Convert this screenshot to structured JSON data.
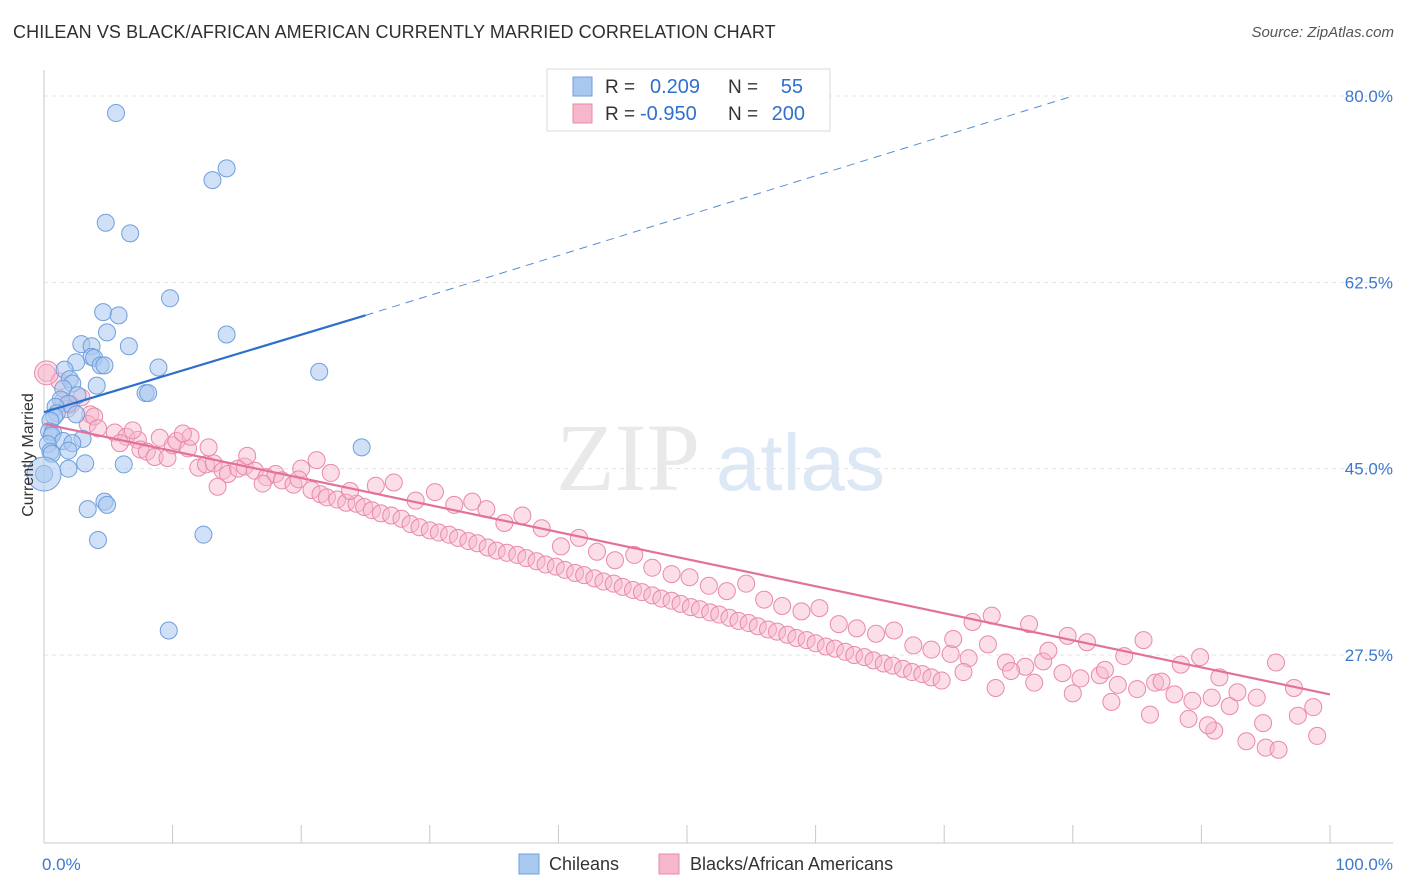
{
  "title": "CHILEAN VS BLACK/AFRICAN AMERICAN CURRENTLY MARRIED CORRELATION CHART",
  "source": "Source: ZipAtlas.com",
  "watermark": {
    "zip": "ZIP",
    "atlas": "atlas"
  },
  "colors": {
    "blue": "#a9c8f0",
    "blue_edge": "#6f9fdc",
    "blue_line": "#2e6fcc",
    "pink": "#f6b6cb",
    "pink_edge": "#e989aa",
    "pink_line": "#e2719b",
    "tick_color": "#3b78d0"
  },
  "legend": {
    "rows": [
      {
        "r_label": "R =",
        "r_value": "0.209",
        "n_label": "N =",
        "n_value": "55"
      },
      {
        "r_label": "R =",
        "r_value": "-0.950",
        "n_label": "N =",
        "n_value": "200"
      }
    ]
  },
  "chart_data": {
    "type": "scatter",
    "title": "CHILEAN VS BLACK/AFRICAN AMERICAN CURRENTLY MARRIED CORRELATION CHART",
    "xlabel": "",
    "ylabel": "Currently Married",
    "xlim": [
      0,
      100
    ],
    "ylim": [
      10,
      83
    ],
    "x_tick_labels": [
      "0.0%",
      "100.0%"
    ],
    "y_ticks": [
      27.5,
      45.0,
      62.5,
      80.0
    ],
    "y_tick_labels": [
      "27.5%",
      "45.0%",
      "62.5%",
      "80.0%"
    ],
    "grid": true,
    "legend_position": "top-center",
    "series": [
      {
        "name": "Chileans",
        "r": 0.209,
        "n": 55,
        "trend": {
          "x": [
            0,
            25
          ],
          "y": [
            50.3,
            59.4
          ],
          "dashed_to": [
            80,
            80.0
          ]
        },
        "points": [
          [
            5.6,
            78.4
          ],
          [
            14.2,
            73.2
          ],
          [
            13.1,
            72.1
          ],
          [
            4.8,
            68.1
          ],
          [
            6.7,
            67.1
          ],
          [
            9.8,
            61.0
          ],
          [
            4.6,
            59.7
          ],
          [
            5.8,
            59.4
          ],
          [
            14.2,
            57.6
          ],
          [
            4.9,
            57.8
          ],
          [
            2.9,
            56.7
          ],
          [
            3.7,
            56.5
          ],
          [
            6.6,
            56.5
          ],
          [
            3.7,
            55.5
          ],
          [
            3.9,
            55.4
          ],
          [
            2.5,
            55.0
          ],
          [
            4.4,
            54.7
          ],
          [
            4.7,
            54.7
          ],
          [
            8.9,
            54.5
          ],
          [
            1.6,
            54.3
          ],
          [
            21.4,
            54.1
          ],
          [
            2.0,
            53.4
          ],
          [
            2.2,
            53.0
          ],
          [
            4.1,
            52.8
          ],
          [
            1.5,
            52.5
          ],
          [
            7.9,
            52.1
          ],
          [
            8.1,
            52.1
          ],
          [
            2.6,
            51.9
          ],
          [
            1.3,
            51.5
          ],
          [
            1.9,
            51.1
          ],
          [
            0.9,
            50.8
          ],
          [
            1.0,
            50.2
          ],
          [
            2.5,
            50.1
          ],
          [
            0.8,
            49.9
          ],
          [
            0.5,
            49.5
          ],
          [
            0.4,
            48.5
          ],
          [
            0.7,
            48.4
          ],
          [
            0.6,
            48.1
          ],
          [
            3.0,
            47.8
          ],
          [
            1.5,
            47.6
          ],
          [
            2.2,
            47.4
          ],
          [
            0.3,
            47.3
          ],
          [
            0.5,
            46.6
          ],
          [
            24.7,
            47.0
          ],
          [
            1.9,
            46.7
          ],
          [
            0.6,
            46.4
          ],
          [
            3.2,
            45.5
          ],
          [
            6.2,
            45.4
          ],
          [
            1.9,
            45.0
          ],
          [
            0.0,
            44.5
          ],
          [
            4.7,
            41.9
          ],
          [
            4.9,
            41.6
          ],
          [
            3.4,
            41.2
          ],
          [
            12.4,
            38.8
          ],
          [
            4.2,
            38.3
          ],
          [
            9.7,
            29.8
          ]
        ]
      },
      {
        "name": "Blacks/African Americans",
        "r": -0.95,
        "n": 200,
        "trend": {
          "x": [
            0,
            100
          ],
          "y": [
            49.2,
            23.8
          ]
        },
        "points": [
          [
            0.2,
            54.0
          ],
          [
            1.2,
            53.2
          ],
          [
            1.5,
            51.4
          ],
          [
            2.1,
            51.0
          ],
          [
            2.9,
            51.7
          ],
          [
            3.6,
            50.1
          ],
          [
            3.4,
            49.2
          ],
          [
            3.9,
            49.9
          ],
          [
            5.5,
            48.4
          ],
          [
            6.4,
            48.0
          ],
          [
            7.3,
            47.7
          ],
          [
            5.9,
            47.4
          ],
          [
            7.5,
            46.8
          ],
          [
            8.0,
            46.6
          ],
          [
            8.6,
            46.1
          ],
          [
            9.6,
            46.0
          ],
          [
            10.0,
            47.2
          ],
          [
            10.3,
            47.6
          ],
          [
            11.2,
            46.9
          ],
          [
            11.4,
            48.0
          ],
          [
            12.0,
            45.1
          ],
          [
            12.6,
            45.4
          ],
          [
            13.2,
            45.5
          ],
          [
            13.9,
            44.8
          ],
          [
            14.3,
            44.5
          ],
          [
            15.1,
            45.0
          ],
          [
            15.6,
            45.2
          ],
          [
            16.4,
            44.8
          ],
          [
            17.3,
            44.2
          ],
          [
            18.0,
            44.5
          ],
          [
            18.5,
            43.9
          ],
          [
            19.4,
            43.5
          ],
          [
            20.0,
            45.0
          ],
          [
            20.8,
            43.0
          ],
          [
            21.5,
            42.6
          ],
          [
            22.0,
            42.3
          ],
          [
            22.8,
            42.1
          ],
          [
            23.5,
            41.8
          ],
          [
            24.3,
            41.7
          ],
          [
            24.9,
            41.4
          ],
          [
            25.5,
            41.1
          ],
          [
            26.2,
            40.8
          ],
          [
            27.0,
            40.6
          ],
          [
            27.8,
            40.3
          ],
          [
            28.5,
            39.8
          ],
          [
            29.2,
            39.5
          ],
          [
            30.0,
            39.2
          ],
          [
            30.7,
            39.0
          ],
          [
            31.5,
            38.8
          ],
          [
            32.2,
            38.5
          ],
          [
            33.0,
            38.2
          ],
          [
            33.7,
            38.0
          ],
          [
            34.5,
            37.6
          ],
          [
            35.2,
            37.3
          ],
          [
            36.0,
            37.1
          ],
          [
            36.8,
            36.9
          ],
          [
            37.5,
            36.6
          ],
          [
            38.3,
            36.3
          ],
          [
            39.0,
            36.0
          ],
          [
            39.8,
            35.8
          ],
          [
            40.5,
            35.5
          ],
          [
            41.3,
            35.2
          ],
          [
            42.0,
            35.0
          ],
          [
            42.8,
            34.7
          ],
          [
            43.5,
            34.4
          ],
          [
            44.3,
            34.2
          ],
          [
            45.0,
            33.9
          ],
          [
            45.8,
            33.6
          ],
          [
            46.5,
            33.4
          ],
          [
            47.3,
            33.1
          ],
          [
            48.0,
            32.8
          ],
          [
            48.8,
            32.6
          ],
          [
            49.5,
            32.3
          ],
          [
            50.3,
            32.0
          ],
          [
            51.0,
            31.8
          ],
          [
            51.8,
            31.5
          ],
          [
            52.5,
            31.3
          ],
          [
            53.3,
            31.0
          ],
          [
            54.0,
            30.7
          ],
          [
            54.8,
            30.5
          ],
          [
            55.5,
            30.2
          ],
          [
            56.3,
            29.9
          ],
          [
            57.0,
            29.7
          ],
          [
            57.8,
            29.4
          ],
          [
            58.5,
            29.1
          ],
          [
            59.3,
            28.9
          ],
          [
            60.0,
            28.6
          ],
          [
            60.8,
            28.3
          ],
          [
            61.5,
            28.1
          ],
          [
            62.3,
            27.8
          ],
          [
            63.0,
            27.5
          ],
          [
            63.8,
            27.3
          ],
          [
            64.5,
            27.0
          ],
          [
            65.3,
            26.7
          ],
          [
            66.0,
            26.5
          ],
          [
            66.8,
            26.2
          ],
          [
            67.5,
            25.9
          ],
          [
            68.3,
            25.7
          ],
          [
            69.0,
            25.4
          ],
          [
            69.8,
            25.1
          ],
          [
            1.8,
            50.6
          ],
          [
            4.2,
            48.8
          ],
          [
            6.9,
            48.6
          ],
          [
            9.0,
            47.9
          ],
          [
            10.8,
            48.3
          ],
          [
            12.8,
            47.0
          ],
          [
            13.5,
            43.3
          ],
          [
            15.8,
            46.2
          ],
          [
            17.0,
            43.6
          ],
          [
            19.8,
            44.0
          ],
          [
            21.2,
            45.8
          ],
          [
            22.3,
            44.6
          ],
          [
            23.8,
            42.9
          ],
          [
            25.8,
            43.4
          ],
          [
            27.2,
            43.7
          ],
          [
            28.9,
            42.0
          ],
          [
            30.4,
            42.8
          ],
          [
            31.9,
            41.6
          ],
          [
            33.3,
            41.9
          ],
          [
            34.4,
            41.2
          ],
          [
            35.8,
            39.9
          ],
          [
            37.2,
            40.6
          ],
          [
            38.7,
            39.4
          ],
          [
            40.2,
            37.7
          ],
          [
            41.6,
            38.5
          ],
          [
            43.0,
            37.2
          ],
          [
            44.4,
            36.4
          ],
          [
            45.9,
            36.9
          ],
          [
            47.3,
            35.7
          ],
          [
            48.8,
            35.1
          ],
          [
            50.2,
            34.8
          ],
          [
            51.7,
            34.0
          ],
          [
            53.1,
            33.5
          ],
          [
            54.6,
            34.2
          ],
          [
            56.0,
            32.7
          ],
          [
            57.4,
            32.1
          ],
          [
            58.9,
            31.6
          ],
          [
            60.3,
            31.9
          ],
          [
            61.8,
            30.4
          ],
          [
            63.2,
            30.0
          ],
          [
            64.7,
            29.5
          ],
          [
            66.1,
            29.8
          ],
          [
            67.6,
            28.4
          ],
          [
            69.0,
            28.0
          ],
          [
            70.5,
            27.6
          ],
          [
            71.9,
            27.2
          ],
          [
            73.4,
            28.5
          ],
          [
            74.8,
            26.8
          ],
          [
            76.3,
            26.4
          ],
          [
            77.7,
            26.9
          ],
          [
            79.2,
            25.8
          ],
          [
            80.6,
            25.3
          ],
          [
            82.1,
            25.6
          ],
          [
            83.5,
            24.7
          ],
          [
            85.0,
            24.3
          ],
          [
            86.4,
            24.9
          ],
          [
            87.9,
            23.8
          ],
          [
            89.3,
            23.2
          ],
          [
            90.8,
            23.5
          ],
          [
            92.2,
            22.7
          ],
          [
            70.7,
            29.0
          ],
          [
            72.2,
            30.6
          ],
          [
            73.7,
            31.2
          ],
          [
            75.2,
            26.0
          ],
          [
            76.6,
            30.4
          ],
          [
            78.1,
            27.9
          ],
          [
            79.6,
            29.3
          ],
          [
            81.1,
            28.7
          ],
          [
            82.5,
            26.1
          ],
          [
            84.0,
            27.4
          ],
          [
            85.5,
            28.9
          ],
          [
            86.9,
            25.0
          ],
          [
            88.4,
            26.6
          ],
          [
            89.9,
            27.3
          ],
          [
            91.4,
            25.4
          ],
          [
            92.8,
            24.0
          ],
          [
            94.3,
            23.5
          ],
          [
            95.8,
            26.8
          ],
          [
            97.2,
            24.4
          ],
          [
            98.7,
            22.6
          ],
          [
            71.5,
            25.9
          ],
          [
            74.0,
            24.4
          ],
          [
            77.0,
            24.9
          ],
          [
            80.0,
            23.9
          ],
          [
            83.0,
            23.1
          ],
          [
            86.0,
            21.9
          ],
          [
            89.0,
            21.5
          ],
          [
            91.0,
            20.4
          ],
          [
            93.5,
            19.4
          ],
          [
            95.0,
            18.8
          ],
          [
            96.0,
            18.6
          ],
          [
            97.5,
            21.8
          ],
          [
            99.0,
            19.9
          ],
          [
            90.5,
            20.9
          ],
          [
            94.8,
            21.1
          ]
        ]
      }
    ]
  },
  "bottom_legend": [
    "Chileans",
    "Blacks/African Americans"
  ]
}
